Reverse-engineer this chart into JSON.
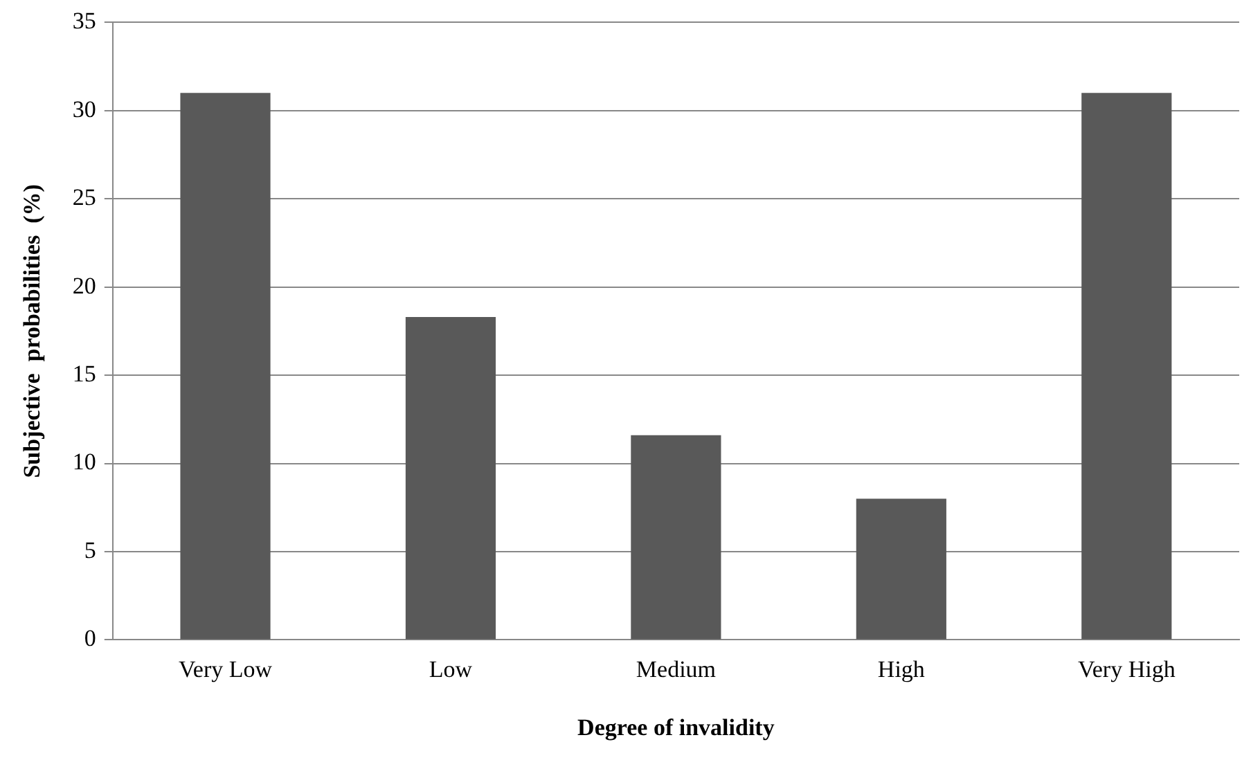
{
  "chart_data": {
    "type": "bar",
    "xlabel": "Degree of invalidity",
    "ylabel": "Subjective  probabilities  (%)",
    "categories": [
      "Very Low",
      "Low",
      "Medium",
      "High",
      "Very High"
    ],
    "values": [
      31,
      18.3,
      11.6,
      8,
      31
    ],
    "color": "#595959",
    "ylim": [
      0,
      35
    ],
    "yticks": [
      0,
      5,
      10,
      15,
      20,
      25,
      30,
      35
    ],
    "grid": "y",
    "legend": false
  }
}
